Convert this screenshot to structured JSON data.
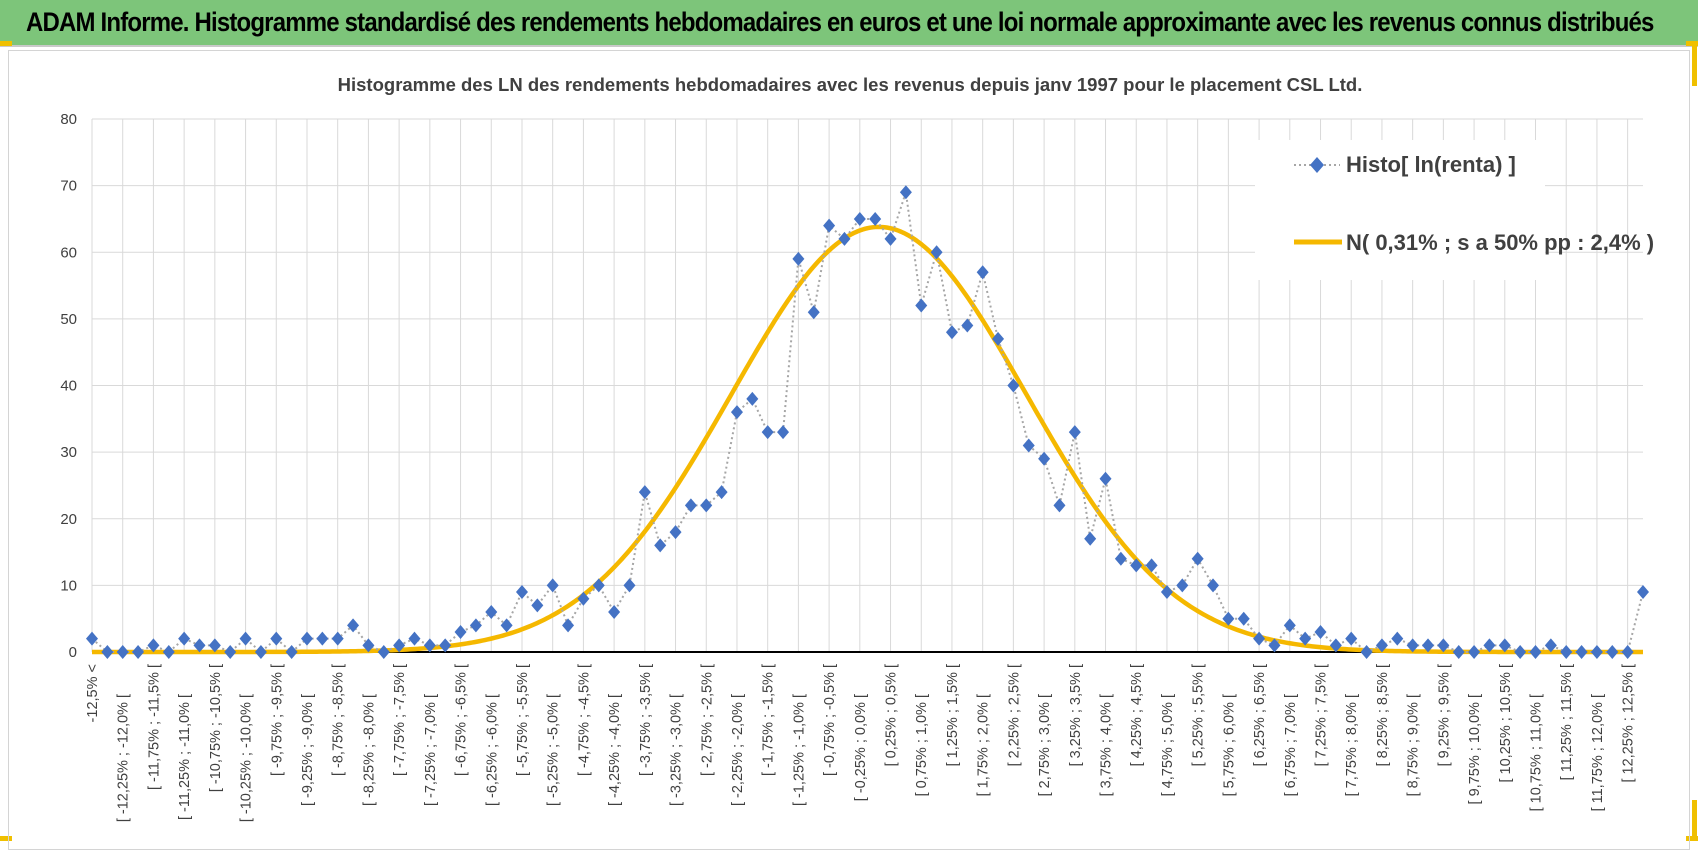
{
  "header": {
    "title": "ADAM Informe. Histogramme standardisé des rendements hebdomadaires en euros et une loi normale approximante avec les revenus connus distribués"
  },
  "colors": {
    "banner": "#7dc57a",
    "histo_marker": "#4472c4",
    "histo_line": "#a6a6a6",
    "normal_curve": "#f5b800",
    "grid": "#d9d9d9"
  },
  "chart_data": {
    "type": "line",
    "title": "Histogramme  des LN des rendements hebdomadaires avec les revenus depuis janv 1997 pour le placement CSL Ltd.",
    "xlabel": "",
    "ylabel": "",
    "ylim": [
      0,
      80
    ],
    "yticks": [
      0,
      10,
      20,
      30,
      40,
      50,
      60,
      70,
      80
    ],
    "grid": true,
    "legend_position": "top-right",
    "categories": [
      "-12,5% <",
      "[ -12,25% ; -12,0% [",
      "[ -11,75% ; -11,5% [",
      "[ -11,25% ; -11,0% [",
      "[ -10,75% ; -10,5% [",
      "[ -10,25% ; -10,0% [",
      "[ -9,75% ; -9,5% [",
      "[ -9,25% ; -9,0% [",
      "[ -8,75% ; -8,5% [",
      "[ -8,25% ; -8,0% [",
      "[ -7,75% ; -7,5% [",
      "[ -7,25% ; -7,0% [",
      "[ -6,75% ; -6,5% [",
      "[ -6,25% ; -6,0% [",
      "[ -5,75% ; -5,5% [",
      "[ -5,25% ; -5,0% [",
      "[ -4,75% ; -4,5% [",
      "[ -4,25% ; -4,0% [",
      "[ -3,75% ; -3,5% [",
      "[ -3,25% ; -3,0% [",
      "[ -2,75% ; -2,5% [",
      "[ -2,25% ; -2,0% [",
      "[ -1,75% ; -1,5% [",
      "[ -1,25% ; -1,0% [",
      "[ -0,75% ; -0,5% [",
      "[ -0,25% ; 0,0% [",
      "[ 0,25% ; 0,5% [",
      "[ 0,75% ; 1,0% [",
      "[ 1,25% ; 1,5% [",
      "[ 1,75% ; 2,0% [",
      "[ 2,25% ; 2,5% [",
      "[ 2,75% ; 3,0% [",
      "[ 3,25% ; 3,5% [",
      "[ 3,75% ; 4,0% [",
      "[ 4,25% ; 4,5% [",
      "[ 4,75% ; 5,0% [",
      "[ 5,25% ; 5,5% [",
      "[ 5,75% ; 6,0% [",
      "[ 6,25% ; 6,5% [",
      "[ 6,75% ; 7,0% [",
      "[ 7,25% ; 7,5% [",
      "[ 7,75% ; 8,0% [",
      "[ 8,25% ; 8,5% [",
      "[ 8,75% ; 9,0% [",
      "[ 9,25% ; 9,5% [",
      "[ 9,75% ; 10,0% [",
      "[ 10,25% ; 10,5% [",
      "[ 10,75% ; 11,0% [",
      "[ 11,25% ; 11,5% [",
      "[ 11,75% ; 12,0% [",
      "[ 12,25% ; 12,5% ["
    ],
    "x_range": [
      -12.5,
      12.75
    ],
    "series": [
      {
        "name": "Histo[ ln(renta) ]",
        "style": "dotted-line-diamond-markers",
        "x": [
          -12.5,
          -12.25,
          -12,
          -11.75,
          -11.5,
          -11.25,
          -11,
          -10.75,
          -10.5,
          -10.25,
          -10,
          -9.75,
          -9.5,
          -9.25,
          -9,
          -8.75,
          -8.5,
          -8.25,
          -8,
          -7.75,
          -7.5,
          -7.25,
          -7,
          -6.75,
          -6.5,
          -6.25,
          -6,
          -5.75,
          -5.5,
          -5.25,
          -5,
          -4.75,
          -4.5,
          -4.25,
          -4,
          -3.75,
          -3.5,
          -3.25,
          -3,
          -2.75,
          -2.5,
          -2.25,
          -2,
          -1.75,
          -1.5,
          -1.25,
          -1,
          -0.75,
          -0.5,
          -0.25,
          0,
          0.25,
          0.5,
          0.75,
          1,
          1.25,
          1.5,
          1.75,
          2,
          2.25,
          2.5,
          2.75,
          3,
          3.25,
          3.5,
          3.75,
          4,
          4.25,
          4.5,
          4.75,
          5,
          5.25,
          5.5,
          5.75,
          6,
          6.25,
          6.5,
          6.75,
          7,
          7.25,
          7.5,
          7.75,
          8,
          8.25,
          8.5,
          8.75,
          9,
          9.25,
          9.5,
          9.75,
          10,
          10.25,
          10.5,
          10.75,
          11,
          11.25,
          11.5,
          11.75,
          12,
          12.25,
          12.5,
          12.75
        ],
        "values": [
          2,
          0,
          0,
          0,
          1,
          0,
          2,
          1,
          1,
          0,
          2,
          0,
          2,
          0,
          2,
          2,
          2,
          4,
          1,
          0,
          1,
          2,
          1,
          1,
          3,
          4,
          6,
          4,
          9,
          7,
          10,
          4,
          8,
          10,
          6,
          10,
          24,
          16,
          18,
          22,
          22,
          24,
          36,
          38,
          33,
          33,
          59,
          51,
          64,
          62,
          65,
          65,
          62,
          69,
          52,
          60,
          48,
          49,
          57,
          47,
          40,
          31,
          29,
          22,
          33,
          17,
          26,
          14,
          13,
          13,
          9,
          10,
          14,
          10,
          5,
          5,
          2,
          1,
          4,
          2,
          3,
          1,
          2,
          0,
          1,
          2,
          1,
          1,
          1,
          0,
          0,
          1,
          1,
          0,
          0,
          1,
          0,
          0,
          0,
          0,
          0,
          9
        ]
      },
      {
        "name": "N( 0,31% ; s a 50% pp : 2,4% )",
        "style": "solid-curve",
        "distribution": "normal",
        "mean": 0.31,
        "std": 2.4,
        "peak": 63.8
      }
    ]
  }
}
